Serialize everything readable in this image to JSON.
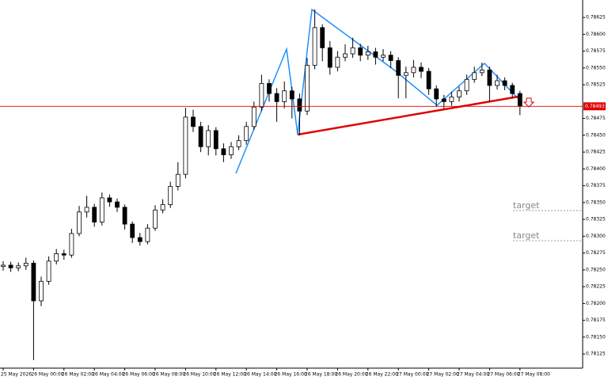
{
  "chart_data": {
    "type": "candlestick",
    "categories": [
      "25 May 2026",
      null,
      null,
      null,
      "26 May 00:00",
      null,
      null,
      null,
      "26 May 02:00",
      null,
      null,
      null,
      "26 May 04:00",
      null,
      null,
      null,
      "26 May 06:00",
      null,
      null,
      null,
      "26 May 08:00",
      null,
      null,
      null,
      "26 May 10:00",
      null,
      null,
      null,
      "26 May 12:00",
      null,
      null,
      null,
      "26 May 14:00",
      null,
      null,
      null,
      "26 May 16:00",
      null,
      null,
      null,
      "26 May 18:00",
      null,
      null,
      null,
      "26 May 20:00",
      null,
      null,
      null,
      "26 May 22:00",
      null,
      null,
      null,
      "27 May 00:00",
      null,
      null,
      null,
      "27 May 02:00",
      null,
      null,
      null,
      "27 May 04:00",
      null,
      null,
      null,
      "27 May 06:00",
      null,
      null,
      null,
      "27 May 08:00"
    ],
    "open": [
      0.78255,
      0.78257,
      0.78253,
      0.78256,
      0.7826,
      0.78204,
      0.78233,
      0.78263,
      0.78274,
      0.78272,
      0.78304,
      0.78336,
      0.78343,
      0.78321,
      0.78357,
      0.78351,
      0.78343,
      0.78318,
      0.78298,
      0.78292,
      0.78312,
      0.78339,
      0.78347,
      0.78374,
      0.78392,
      0.78477,
      0.78463,
      0.78433,
      0.78457,
      0.7843,
      0.78421,
      0.78433,
      0.78442,
      0.78463,
      0.78492,
      0.78527,
      0.78512,
      0.785,
      0.78516,
      0.78504,
      0.78486,
      0.78554,
      0.7861,
      0.7858,
      0.78551,
      0.78566,
      0.78571,
      0.7858,
      0.78569,
      0.78574,
      0.78566,
      0.78569,
      0.78561,
      0.78539,
      0.78543,
      0.78551,
      0.78545,
      0.78519,
      0.78504,
      0.785,
      0.78507,
      0.78516,
      0.78533,
      0.78543,
      0.78547,
      0.78524,
      0.78531,
      0.78524,
      0.78512
    ],
    "high": [
      0.78263,
      0.78262,
      0.78261,
      0.78268,
      0.78264,
      0.7824,
      0.7827,
      0.78281,
      0.7828,
      0.78311,
      0.78345,
      0.7836,
      0.78348,
      0.78365,
      0.78362,
      0.78356,
      0.78347,
      0.78322,
      0.78305,
      0.78318,
      0.78346,
      0.78355,
      0.78381,
      0.7841,
      0.78491,
      0.78488,
      0.7847,
      0.78465,
      0.78462,
      0.78438,
      0.7844,
      0.7845,
      0.7847,
      0.785,
      0.7854,
      0.78533,
      0.7852,
      0.7853,
      0.78522,
      0.78512,
      0.78565,
      0.78637,
      0.78615,
      0.7859,
      0.78575,
      0.78585,
      0.78595,
      0.78586,
      0.78583,
      0.7858,
      0.78578,
      0.78575,
      0.78566,
      0.78552,
      0.78562,
      0.78558,
      0.7855,
      0.78524,
      0.7851,
      0.78515,
      0.78522,
      0.7854,
      0.78552,
      0.78558,
      0.78552,
      0.7854,
      0.78536,
      0.78528,
      0.78516
    ],
    "low": [
      0.78249,
      0.78247,
      0.78248,
      0.7825,
      0.78116,
      0.78196,
      0.78228,
      0.78258,
      0.78265,
      0.78268,
      0.783,
      0.78328,
      0.78314,
      0.78316,
      0.78344,
      0.78336,
      0.7831,
      0.7829,
      0.78286,
      0.78288,
      0.78308,
      0.78334,
      0.78342,
      0.78368,
      0.78386,
      0.78455,
      0.78425,
      0.7842,
      0.7842,
      0.7841,
      0.78415,
      0.78428,
      0.78436,
      0.78458,
      0.78486,
      0.785,
      0.7847,
      0.7849,
      0.78475,
      0.7845,
      0.7848,
      0.78548,
      0.7856,
      0.7854,
      0.78545,
      0.7856,
      0.78565,
      0.7856,
      0.78562,
      0.78555,
      0.7856,
      0.7855,
      0.78505,
      0.78505,
      0.78536,
      0.78535,
      0.7851,
      0.78492,
      0.7849,
      0.78494,
      0.785,
      0.7851,
      0.78528,
      0.78538,
      0.785,
      0.78518,
      0.78517,
      0.78505,
      0.7848
    ],
    "close": [
      0.78257,
      0.78253,
      0.78256,
      0.7826,
      0.78204,
      0.78233,
      0.78263,
      0.78274,
      0.78272,
      0.78304,
      0.78336,
      0.78343,
      0.78321,
      0.78357,
      0.78351,
      0.78343,
      0.78318,
      0.78298,
      0.78292,
      0.78312,
      0.78339,
      0.78347,
      0.78374,
      0.78392,
      0.78477,
      0.78463,
      0.78433,
      0.78457,
      0.7843,
      0.78421,
      0.78433,
      0.78442,
      0.78463,
      0.78492,
      0.78527,
      0.78512,
      0.785,
      0.78516,
      0.78504,
      0.78486,
      0.78554,
      0.7861,
      0.7858,
      0.78551,
      0.78566,
      0.78571,
      0.7858,
      0.78569,
      0.78574,
      0.78566,
      0.78569,
      0.78561,
      0.78539,
      0.78543,
      0.78551,
      0.78545,
      0.78519,
      0.78504,
      0.785,
      0.78507,
      0.78516,
      0.78533,
      0.78543,
      0.78547,
      0.78524,
      0.78531,
      0.78524,
      0.78512,
      0.78493
    ],
    "ylim": [
      0.78104,
      0.78651
    ],
    "yticks": [
      0.78125,
      {
        "value": 0.7815,
        "label": "0.78150"
      },
      0.78175,
      {
        "value": 0.782,
        "label": "0.78200"
      },
      0.78225,
      {
        "value": 0.7825,
        "label": "0.78250"
      },
      0.78275,
      {
        "value": 0.783,
        "label": "0.78300"
      },
      0.78325,
      {
        "value": 0.7835,
        "label": "0.78350"
      },
      0.78375,
      {
        "value": 0.784,
        "label": "0.78400"
      },
      0.78425,
      {
        "value": 0.7845,
        "label": "0.78450"
      },
      0.78475,
      0.78525,
      {
        "value": 0.7855,
        "label": "0.78550"
      },
      0.78575,
      {
        "value": 0.786,
        "label": "0.78600"
      },
      0.78625
    ],
    "current_price": 0.78493,
    "annotations": [
      "target",
      "target"
    ],
    "up_color": "#ffffff",
    "down_color": "#000000",
    "outline_color": "#000000"
  }
}
